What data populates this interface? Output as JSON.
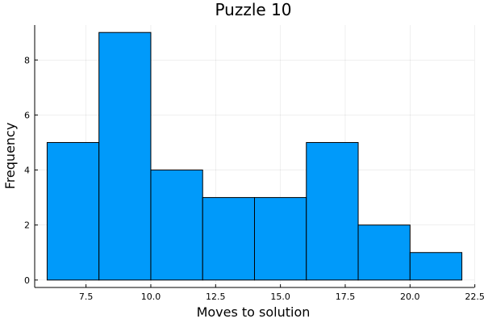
{
  "chart_data": {
    "type": "bar",
    "title": "Puzzle 10",
    "xlabel": "Moves to solution",
    "ylabel": "Frequency",
    "bins": [
      {
        "x0": 6,
        "x1": 8,
        "count": 5
      },
      {
        "x0": 8,
        "x1": 10,
        "count": 9
      },
      {
        "x0": 10,
        "x1": 12,
        "count": 4
      },
      {
        "x0": 12,
        "x1": 14,
        "count": 3
      },
      {
        "x0": 14,
        "x1": 16,
        "count": 3
      },
      {
        "x0": 16,
        "x1": 18,
        "count": 5
      },
      {
        "x0": 18,
        "x1": 20,
        "count": 2
      },
      {
        "x0": 20,
        "x1": 22,
        "count": 1
      }
    ],
    "xlim": [
      5.52,
      22.48
    ],
    "ylim": [
      -0.27,
      9.27
    ],
    "xticks": [
      7.5,
      10.0,
      12.5,
      15.0,
      17.5,
      20.0,
      22.5
    ],
    "xtick_labels": [
      "7.5",
      "10.0",
      "12.5",
      "15.0",
      "17.5",
      "20.0",
      "22.5"
    ],
    "yticks": [
      0,
      2,
      4,
      6,
      8
    ],
    "ytick_labels": [
      "0",
      "2",
      "4",
      "6",
      "8"
    ],
    "bar_color": "#009AFA",
    "grid": true,
    "legend": false
  }
}
